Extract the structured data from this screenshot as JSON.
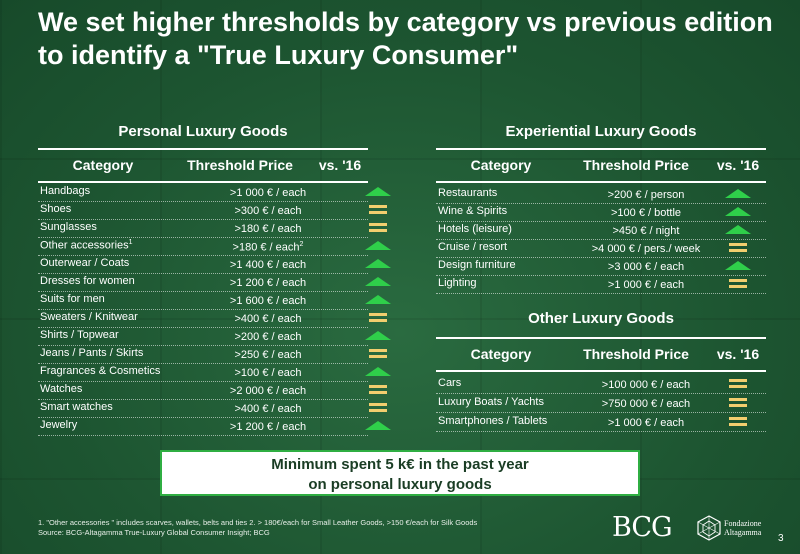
{
  "title": "We set higher thresholds by category vs previous edition to identify a \"True Luxury Consumer\"",
  "colors": {
    "up": "#2fcf4a",
    "flat": "#f2ce6e",
    "background": "#1f5a34",
    "callout_border": "#2fae42"
  },
  "headers": {
    "category": "Category",
    "threshold": "Threshold Price",
    "vs": "vs. '16"
  },
  "personal": {
    "title": "Personal Luxury Goods",
    "rows": [
      {
        "category": "Handbags",
        "price": ">1 000 € / each",
        "trend": "up"
      },
      {
        "category": "Shoes",
        "price": ">300 € / each",
        "trend": "flat"
      },
      {
        "category": "Sunglasses",
        "price": ">180 € / each",
        "trend": "flat"
      },
      {
        "category": "Other accessories",
        "sup": "1",
        "price": ">180 € / each",
        "price_sup": "2",
        "trend": "up"
      },
      {
        "category": "Outerwear / Coats",
        "price": ">1 400 € / each",
        "trend": "up"
      },
      {
        "category": "Dresses for women",
        "price": ">1 200 € / each",
        "trend": "up"
      },
      {
        "category": "Suits for men",
        "price": ">1 600 € / each",
        "trend": "up"
      },
      {
        "category": "Sweaters / Knitwear",
        "price": ">400 € / each",
        "trend": "flat"
      },
      {
        "category": "Shirts / Topwear",
        "price": ">200 € / each",
        "trend": "up"
      },
      {
        "category": "Jeans / Pants / Skirts",
        "price": ">250 € / each",
        "trend": "flat"
      },
      {
        "category": "Fragrances & Cosmetics",
        "price": ">100 € / each",
        "trend": "up"
      },
      {
        "category": "Watches",
        "price": ">2 000 € / each",
        "trend": "flat"
      },
      {
        "category": "Smart watches",
        "price": ">400 € / each",
        "trend": "flat"
      },
      {
        "category": "Jewelry",
        "price": ">1 200 € / each",
        "trend": "up"
      }
    ]
  },
  "experiential": {
    "title": "Experiential Luxury Goods",
    "rows": [
      {
        "category": "Restaurants",
        "price": ">200 € / person",
        "trend": "up"
      },
      {
        "category": "Wine & Spirits",
        "price": ">100 € / bottle",
        "trend": "up"
      },
      {
        "category": "Hotels (leisure)",
        "price": ">450 € / night",
        "trend": "up"
      },
      {
        "category": "Cruise / resort",
        "price": ">4 000 € / pers./ week",
        "trend": "flat"
      },
      {
        "category": "Design furniture",
        "price": ">3 000 € / each",
        "trend": "up"
      },
      {
        "category": "Lighting",
        "price": ">1 000 € / each",
        "trend": "flat"
      }
    ]
  },
  "other": {
    "title": "Other Luxury Goods",
    "rows": [
      {
        "category": "Cars",
        "price": ">100 000 € / each",
        "trend": "flat"
      },
      {
        "category": "Luxury Boats / Yachts",
        "price": ">750 000 € / each",
        "trend": "flat"
      },
      {
        "category": "Smartphones / Tablets",
        "price": ">1 000 € / each",
        "trend": "flat"
      }
    ]
  },
  "callout": {
    "line1": "Minimum spent 5 k€ in the past year",
    "line2": "on personal luxury goods"
  },
  "footnote": {
    "line1": "1. \"Other accessories \" includes scarves, wallets, belts and ties      2. > 180€/each for Small Leather Goods,  >150 €/each for Silk Goods",
    "line2": "Source: BCG-Altagamma True-Luxury Global Consumer Insight; BCG"
  },
  "logos": {
    "bcg": "BCG",
    "fondazione_line1": "Fondazione",
    "fondazione_line2": "Altagamma"
  },
  "page_number": "3"
}
